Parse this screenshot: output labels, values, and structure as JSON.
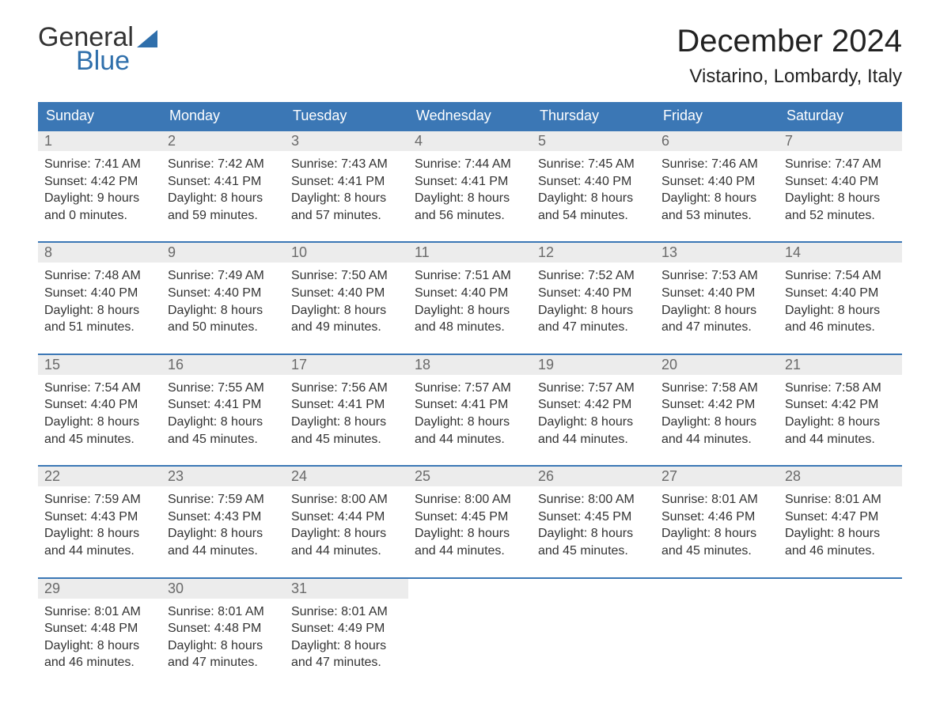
{
  "logo": {
    "word1": "General",
    "word2": "Blue"
  },
  "title": "December 2024",
  "subtitle": "Vistarino, Lombardy, Italy",
  "colors": {
    "header_bg": "#3b77b5",
    "header_text": "#ffffff",
    "daynum_bg": "#ececec",
    "daynum_text": "#6a6a6a",
    "cell_text": "#333333",
    "week_border": "#3b77b5",
    "logo_dark": "#333333",
    "logo_blue": "#2f6fab",
    "page_bg": "#ffffff"
  },
  "typography": {
    "title_fontsize": 40,
    "subtitle_fontsize": 24,
    "header_fontsize": 18,
    "daynum_fontsize": 18,
    "cell_fontsize": 16,
    "font_family": "Arial"
  },
  "day_labels": [
    "Sunday",
    "Monday",
    "Tuesday",
    "Wednesday",
    "Thursday",
    "Friday",
    "Saturday"
  ],
  "weeks": [
    [
      {
        "n": "1",
        "sunrise": "Sunrise: 7:41 AM",
        "sunset": "Sunset: 4:42 PM",
        "d1": "Daylight: 9 hours",
        "d2": "and 0 minutes."
      },
      {
        "n": "2",
        "sunrise": "Sunrise: 7:42 AM",
        "sunset": "Sunset: 4:41 PM",
        "d1": "Daylight: 8 hours",
        "d2": "and 59 minutes."
      },
      {
        "n": "3",
        "sunrise": "Sunrise: 7:43 AM",
        "sunset": "Sunset: 4:41 PM",
        "d1": "Daylight: 8 hours",
        "d2": "and 57 minutes."
      },
      {
        "n": "4",
        "sunrise": "Sunrise: 7:44 AM",
        "sunset": "Sunset: 4:41 PM",
        "d1": "Daylight: 8 hours",
        "d2": "and 56 minutes."
      },
      {
        "n": "5",
        "sunrise": "Sunrise: 7:45 AM",
        "sunset": "Sunset: 4:40 PM",
        "d1": "Daylight: 8 hours",
        "d2": "and 54 minutes."
      },
      {
        "n": "6",
        "sunrise": "Sunrise: 7:46 AM",
        "sunset": "Sunset: 4:40 PM",
        "d1": "Daylight: 8 hours",
        "d2": "and 53 minutes."
      },
      {
        "n": "7",
        "sunrise": "Sunrise: 7:47 AM",
        "sunset": "Sunset: 4:40 PM",
        "d1": "Daylight: 8 hours",
        "d2": "and 52 minutes."
      }
    ],
    [
      {
        "n": "8",
        "sunrise": "Sunrise: 7:48 AM",
        "sunset": "Sunset: 4:40 PM",
        "d1": "Daylight: 8 hours",
        "d2": "and 51 minutes."
      },
      {
        "n": "9",
        "sunrise": "Sunrise: 7:49 AM",
        "sunset": "Sunset: 4:40 PM",
        "d1": "Daylight: 8 hours",
        "d2": "and 50 minutes."
      },
      {
        "n": "10",
        "sunrise": "Sunrise: 7:50 AM",
        "sunset": "Sunset: 4:40 PM",
        "d1": "Daylight: 8 hours",
        "d2": "and 49 minutes."
      },
      {
        "n": "11",
        "sunrise": "Sunrise: 7:51 AM",
        "sunset": "Sunset: 4:40 PM",
        "d1": "Daylight: 8 hours",
        "d2": "and 48 minutes."
      },
      {
        "n": "12",
        "sunrise": "Sunrise: 7:52 AM",
        "sunset": "Sunset: 4:40 PM",
        "d1": "Daylight: 8 hours",
        "d2": "and 47 minutes."
      },
      {
        "n": "13",
        "sunrise": "Sunrise: 7:53 AM",
        "sunset": "Sunset: 4:40 PM",
        "d1": "Daylight: 8 hours",
        "d2": "and 47 minutes."
      },
      {
        "n": "14",
        "sunrise": "Sunrise: 7:54 AM",
        "sunset": "Sunset: 4:40 PM",
        "d1": "Daylight: 8 hours",
        "d2": "and 46 minutes."
      }
    ],
    [
      {
        "n": "15",
        "sunrise": "Sunrise: 7:54 AM",
        "sunset": "Sunset: 4:40 PM",
        "d1": "Daylight: 8 hours",
        "d2": "and 45 minutes."
      },
      {
        "n": "16",
        "sunrise": "Sunrise: 7:55 AM",
        "sunset": "Sunset: 4:41 PM",
        "d1": "Daylight: 8 hours",
        "d2": "and 45 minutes."
      },
      {
        "n": "17",
        "sunrise": "Sunrise: 7:56 AM",
        "sunset": "Sunset: 4:41 PM",
        "d1": "Daylight: 8 hours",
        "d2": "and 45 minutes."
      },
      {
        "n": "18",
        "sunrise": "Sunrise: 7:57 AM",
        "sunset": "Sunset: 4:41 PM",
        "d1": "Daylight: 8 hours",
        "d2": "and 44 minutes."
      },
      {
        "n": "19",
        "sunrise": "Sunrise: 7:57 AM",
        "sunset": "Sunset: 4:42 PM",
        "d1": "Daylight: 8 hours",
        "d2": "and 44 minutes."
      },
      {
        "n": "20",
        "sunrise": "Sunrise: 7:58 AM",
        "sunset": "Sunset: 4:42 PM",
        "d1": "Daylight: 8 hours",
        "d2": "and 44 minutes."
      },
      {
        "n": "21",
        "sunrise": "Sunrise: 7:58 AM",
        "sunset": "Sunset: 4:42 PM",
        "d1": "Daylight: 8 hours",
        "d2": "and 44 minutes."
      }
    ],
    [
      {
        "n": "22",
        "sunrise": "Sunrise: 7:59 AM",
        "sunset": "Sunset: 4:43 PM",
        "d1": "Daylight: 8 hours",
        "d2": "and 44 minutes."
      },
      {
        "n": "23",
        "sunrise": "Sunrise: 7:59 AM",
        "sunset": "Sunset: 4:43 PM",
        "d1": "Daylight: 8 hours",
        "d2": "and 44 minutes."
      },
      {
        "n": "24",
        "sunrise": "Sunrise: 8:00 AM",
        "sunset": "Sunset: 4:44 PM",
        "d1": "Daylight: 8 hours",
        "d2": "and 44 minutes."
      },
      {
        "n": "25",
        "sunrise": "Sunrise: 8:00 AM",
        "sunset": "Sunset: 4:45 PM",
        "d1": "Daylight: 8 hours",
        "d2": "and 44 minutes."
      },
      {
        "n": "26",
        "sunrise": "Sunrise: 8:00 AM",
        "sunset": "Sunset: 4:45 PM",
        "d1": "Daylight: 8 hours",
        "d2": "and 45 minutes."
      },
      {
        "n": "27",
        "sunrise": "Sunrise: 8:01 AM",
        "sunset": "Sunset: 4:46 PM",
        "d1": "Daylight: 8 hours",
        "d2": "and 45 minutes."
      },
      {
        "n": "28",
        "sunrise": "Sunrise: 8:01 AM",
        "sunset": "Sunset: 4:47 PM",
        "d1": "Daylight: 8 hours",
        "d2": "and 46 minutes."
      }
    ],
    [
      {
        "n": "29",
        "sunrise": "Sunrise: 8:01 AM",
        "sunset": "Sunset: 4:48 PM",
        "d1": "Daylight: 8 hours",
        "d2": "and 46 minutes."
      },
      {
        "n": "30",
        "sunrise": "Sunrise: 8:01 AM",
        "sunset": "Sunset: 4:48 PM",
        "d1": "Daylight: 8 hours",
        "d2": "and 47 minutes."
      },
      {
        "n": "31",
        "sunrise": "Sunrise: 8:01 AM",
        "sunset": "Sunset: 4:49 PM",
        "d1": "Daylight: 8 hours",
        "d2": "and 47 minutes."
      },
      null,
      null,
      null,
      null
    ]
  ]
}
